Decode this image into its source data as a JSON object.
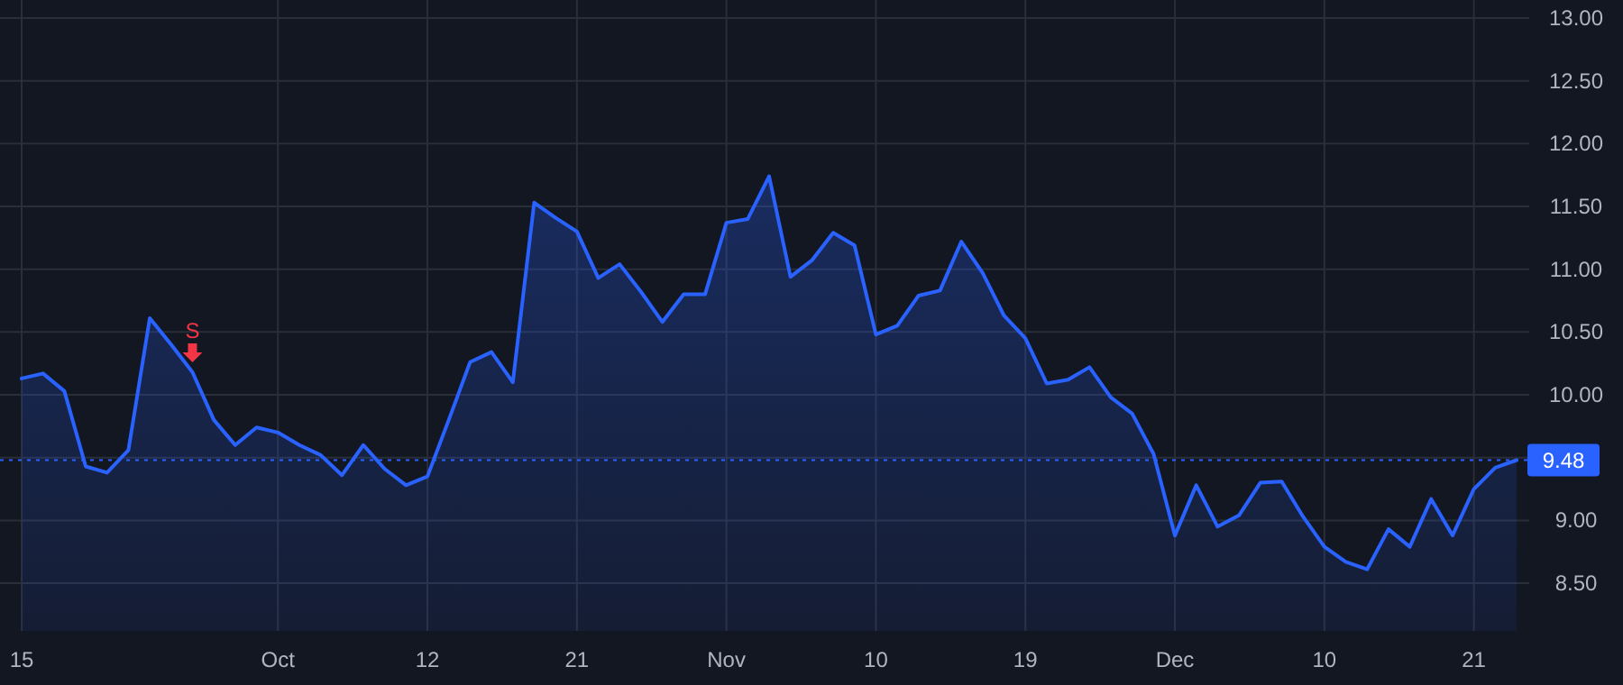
{
  "chart_data": {
    "type": "area",
    "categories": [
      "15",
      null,
      null,
      null,
      null,
      null,
      null,
      null,
      null,
      null,
      null,
      null,
      "Oct",
      null,
      null,
      null,
      null,
      null,
      null,
      "12",
      null,
      null,
      null,
      null,
      null,
      null,
      "21",
      null,
      null,
      null,
      null,
      null,
      null,
      "Nov",
      null,
      null,
      null,
      null,
      null,
      null,
      "10",
      null,
      null,
      null,
      null,
      null,
      null,
      "19",
      null,
      null,
      null,
      null,
      null,
      null,
      "Dec",
      null,
      null,
      null,
      null,
      null,
      null,
      "10",
      null,
      null,
      null,
      null,
      null,
      null,
      "21",
      null,
      null
    ],
    "series": [
      {
        "color": "#2962ff",
        "values": [
          10.13,
          10.17,
          10.03,
          9.43,
          9.38,
          9.56,
          10.61,
          10.4,
          10.18,
          9.8,
          9.6,
          9.74,
          9.7,
          9.6,
          9.52,
          9.36,
          9.6,
          9.41,
          9.28,
          9.35,
          9.8,
          10.26,
          10.34,
          10.1,
          11.53,
          11.41,
          11.3,
          10.93,
          11.04,
          10.82,
          10.58,
          10.8,
          10.8,
          11.37,
          11.4,
          11.74,
          10.94,
          11.07,
          11.29,
          11.19,
          10.48,
          10.55,
          10.79,
          10.83,
          11.22,
          10.97,
          10.63,
          10.45,
          10.09,
          10.12,
          10.22,
          9.98,
          9.85,
          9.53,
          8.88,
          9.28,
          8.95,
          9.04,
          9.3,
          9.31,
          9.03,
          8.79,
          8.67,
          8.61,
          8.93,
          8.79,
          9.17,
          8.88,
          9.25,
          9.42,
          9.48
        ]
      }
    ],
    "ylim": [
      8.12,
      13.0
    ],
    "yticks": [
      {
        "value": 8.5,
        "label": "8.50"
      },
      {
        "value": 9,
        "label": "9.00"
      },
      {
        "value": 9.5,
        "label": null
      },
      {
        "value": 10,
        "label": "10.00"
      },
      {
        "value": 10.5,
        "label": "10.50"
      },
      {
        "value": 11,
        "label": "11.00"
      },
      {
        "value": 11.5,
        "label": "11.50"
      },
      {
        "value": 12,
        "label": "12.00"
      },
      {
        "value": 12.5,
        "label": "12.50"
      },
      {
        "value": 13,
        "label": "13.00"
      }
    ],
    "grid": true,
    "ref_lines": [
      {
        "axis": "y",
        "value": 9.48,
        "label": "9.48",
        "color": "#2962ff",
        "line_style": "dotted"
      }
    ],
    "annotations": [
      {
        "text": "S",
        "y": 10.18
      }
    ]
  }
}
